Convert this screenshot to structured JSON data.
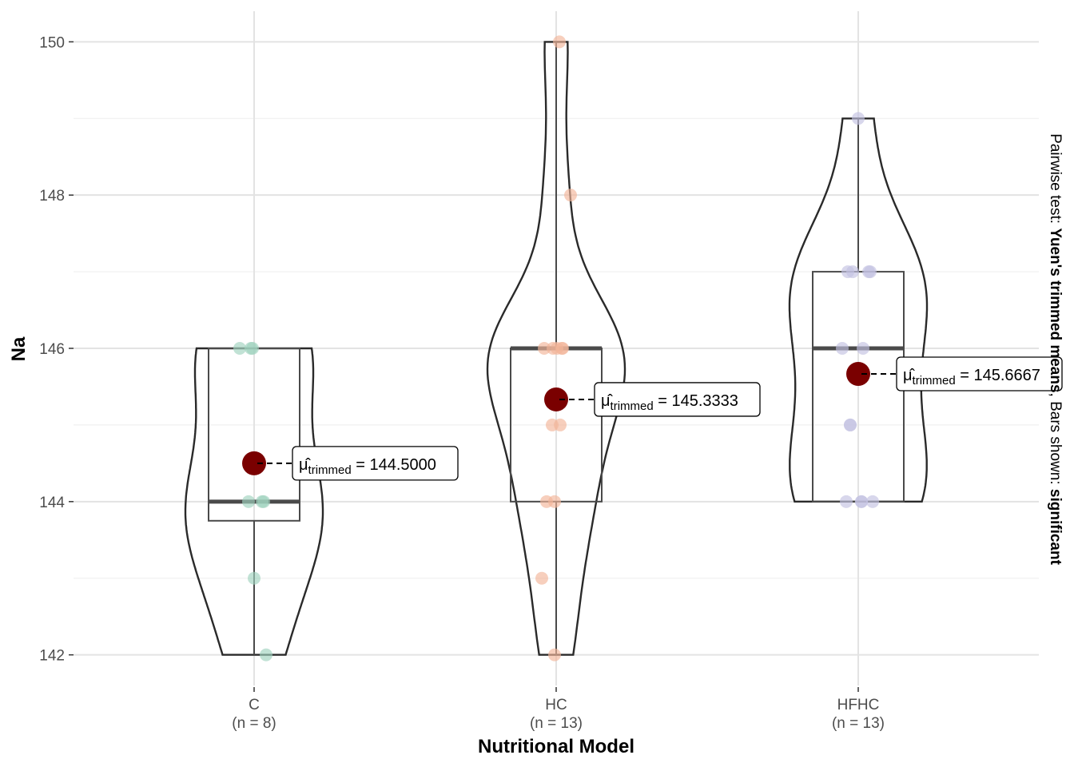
{
  "chart_data": {
    "type": "violin-box",
    "xlabel": "Nutritional Model",
    "ylabel": "Na",
    "ylim": [
      141.6,
      150.4
    ],
    "y_ticks": [
      142,
      144,
      146,
      148,
      150
    ],
    "y_tick_labels": [
      "142",
      "144",
      "146",
      "148",
      "150"
    ],
    "grid": true,
    "side_note": {
      "prefix": "Pairwise test: ",
      "test": "Yuen's trimmed means",
      "middle": ", Bars shown: ",
      "bars": "significant"
    },
    "mean_symbol": "μ̂",
    "mean_subscript": "trimmed",
    "mean_color": "#7a0000",
    "groups": [
      {
        "name": "C",
        "n_label": "(n = 8)",
        "color": "#9fd3be",
        "points": [
          146,
          146,
          146,
          144,
          144,
          144,
          143,
          142
        ],
        "box": {
          "lower": 143.75,
          "median": 144,
          "upper": 146,
          "whisker_low": 142,
          "whisker_high": 146
        },
        "trimmed_mean": 144.5,
        "mean_label": "144.5000"
      },
      {
        "name": "HC",
        "n_label": "(n = 13)",
        "color": "#f2b69a",
        "points": [
          150,
          148,
          146,
          146,
          146,
          146,
          145,
          145,
          144,
          144,
          143,
          142,
          146
        ],
        "box": {
          "lower": 144,
          "median": 146,
          "upper": 146,
          "whisker_low": 142,
          "whisker_high": 150
        },
        "trimmed_mean": 145.3333,
        "mean_label": "145.3333"
      },
      {
        "name": "HFHC",
        "n_label": "(n = 13)",
        "color": "#c3c2e2",
        "points": [
          149,
          147,
          147,
          147,
          147,
          146,
          146,
          145,
          145,
          144,
          144,
          144,
          144
        ],
        "box": {
          "lower": 144,
          "median": 146,
          "upper": 147,
          "whisker_low": 144,
          "whisker_high": 149
        },
        "trimmed_mean": 145.6667,
        "mean_label": "145.6667"
      }
    ]
  }
}
